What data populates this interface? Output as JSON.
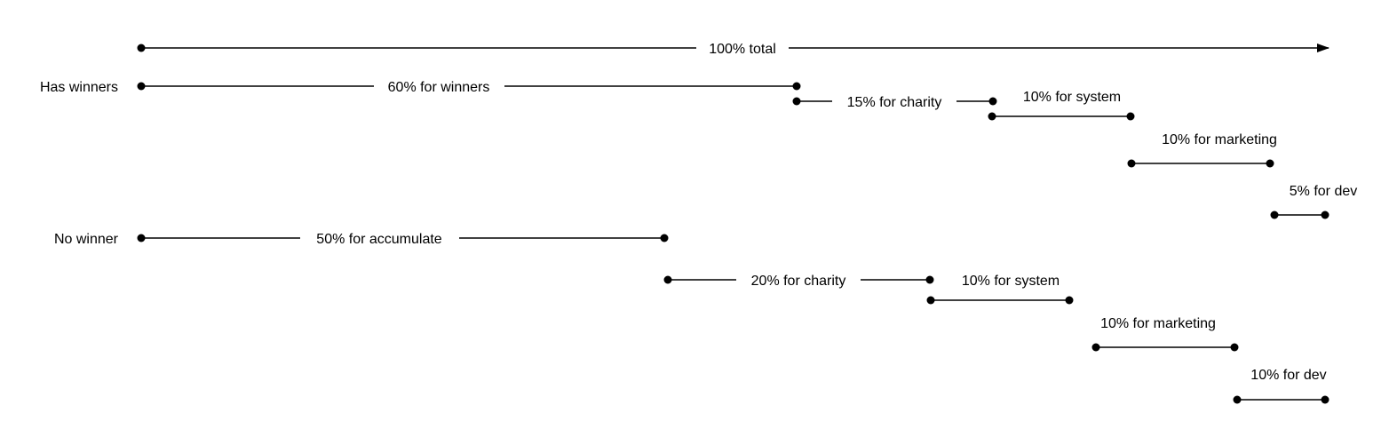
{
  "diagram": {
    "total_label": "100% total",
    "rows": [
      {
        "label": "Has winners",
        "segments": [
          {
            "label": "60% for winners"
          },
          {
            "label": "15% for charity"
          },
          {
            "label": "10% for system"
          },
          {
            "label": "10% for marketing"
          },
          {
            "label": "5% for dev"
          }
        ]
      },
      {
        "label": "No winner",
        "segments": [
          {
            "label": "50% for accumulate"
          },
          {
            "label": "20% for charity"
          },
          {
            "label": "10% for system"
          },
          {
            "label": "10% for marketing"
          },
          {
            "label": "10% for dev"
          }
        ]
      }
    ]
  }
}
